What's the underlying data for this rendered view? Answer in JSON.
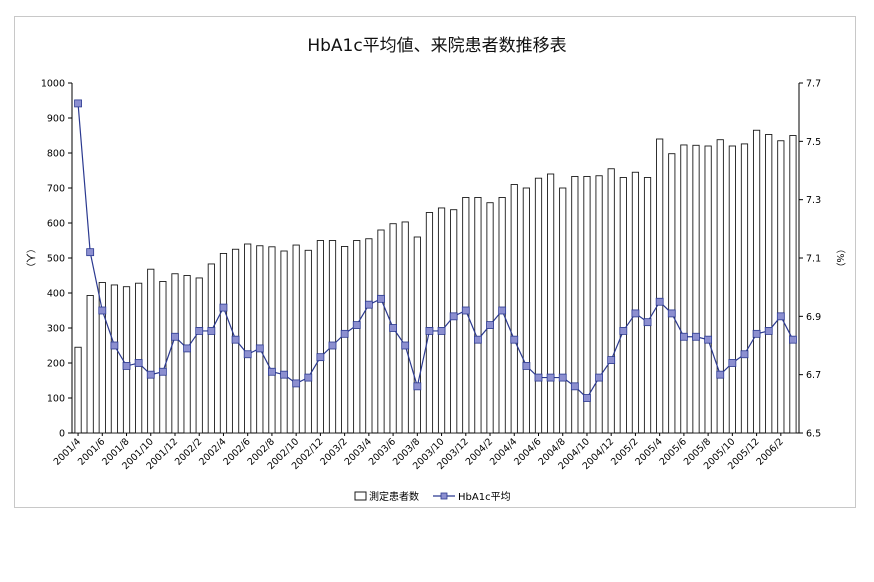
{
  "chart_data": {
    "type": "bar",
    "title": "HbA1c平均値、来院患者数推移表",
    "y_left_label": "（人）",
    "y_right_label": "（%）",
    "y_left_ticks": [
      "0",
      "100",
      "200",
      "300",
      "400",
      "500",
      "600",
      "700",
      "800",
      "900",
      "1000"
    ],
    "y_right_ticks": [
      "6.5",
      "6.7",
      "6.9",
      "7.1",
      "7.3",
      "7.5",
      "7.7"
    ],
    "y_left_range": [
      0,
      1000
    ],
    "y_right_range": [
      6.5,
      7.7
    ],
    "categories": [
      "2001/4",
      "2001/5",
      "2001/6",
      "2001/7",
      "2001/8",
      "2001/9",
      "2001/10",
      "2001/11",
      "2001/12",
      "2002/1",
      "2002/2",
      "2002/3",
      "2002/4",
      "2002/5",
      "2002/6",
      "2002/7",
      "2002/8",
      "2002/9",
      "2002/10",
      "2002/11",
      "2002/12",
      "2003/1",
      "2003/2",
      "2003/3",
      "2003/4",
      "2003/5",
      "2003/6",
      "2003/7",
      "2003/8",
      "2003/9",
      "2003/10",
      "2003/11",
      "2003/12",
      "2004/1",
      "2004/2",
      "2004/3",
      "2004/4",
      "2004/5",
      "2004/6",
      "2004/7",
      "2004/8",
      "2004/9",
      "2004/10",
      "2004/11",
      "2004/12",
      "2005/1",
      "2005/2",
      "2005/3",
      "2005/4",
      "2005/5",
      "2005/6",
      "2005/7",
      "2005/8",
      "2005/9",
      "2005/10",
      "2005/11",
      "2005/12",
      "2006/1",
      "2006/2",
      "2006/3"
    ],
    "x_tick_labels": [
      "2001/4",
      "2001/6",
      "2001/8",
      "2001/10",
      "2001/12",
      "2002/2",
      "2002/4",
      "2002/6",
      "2002/8",
      "2002/10",
      "2002/12",
      "2003/2",
      "2003/4",
      "2003/6",
      "2003/8",
      "2003/10",
      "2003/12",
      "2004/2",
      "2004/4",
      "2004/6",
      "2004/8",
      "2004/10",
      "2004/12",
      "2005/2",
      "2005/4",
      "2005/6",
      "2005/8",
      "2005/10",
      "2005/12",
      "2006/2"
    ],
    "series": [
      {
        "name": "測定患者数",
        "type": "bar",
        "axis": "left",
        "color": "#ffffff",
        "stroke": "#1a1a1a",
        "values": [
          245,
          393,
          430,
          423,
          418,
          428,
          468,
          433,
          455,
          450,
          443,
          483,
          513,
          525,
          540,
          535,
          532,
          520,
          537,
          522,
          550,
          550,
          533,
          550,
          555,
          580,
          598,
          603,
          560,
          630,
          643,
          638,
          673,
          673,
          658,
          673,
          710,
          700,
          728,
          740,
          700,
          733,
          733,
          735,
          755,
          730,
          745,
          730,
          840,
          798,
          823,
          822,
          820,
          838,
          820,
          826,
          865,
          853,
          835,
          850
        ]
      },
      {
        "name": "HbA1c平均",
        "type": "line",
        "axis": "right",
        "color": "#2b3990",
        "marker_fill": "#8c8fd0",
        "values": [
          7.63,
          7.12,
          6.92,
          6.8,
          6.73,
          6.74,
          6.7,
          6.71,
          6.83,
          6.79,
          6.85,
          6.85,
          6.93,
          6.82,
          6.77,
          6.79,
          6.71,
          6.7,
          6.67,
          6.69,
          6.76,
          6.8,
          6.84,
          6.87,
          6.94,
          6.96,
          6.86,
          6.8,
          6.66,
          6.85,
          6.85,
          6.9,
          6.92,
          6.82,
          6.87,
          6.92,
          6.82,
          6.73,
          6.69,
          6.69,
          6.69,
          6.66,
          6.62,
          6.69,
          6.75,
          6.85,
          6.91,
          6.88,
          6.95,
          6.91,
          6.83,
          6.83,
          6.82,
          6.7,
          6.74,
          6.77,
          6.84,
          6.85,
          6.9,
          6.82
        ]
      }
    ],
    "legend": [
      "測定患者数",
      "HbA1c平均"
    ],
    "legend_position": "bottom",
    "grid": false
  }
}
